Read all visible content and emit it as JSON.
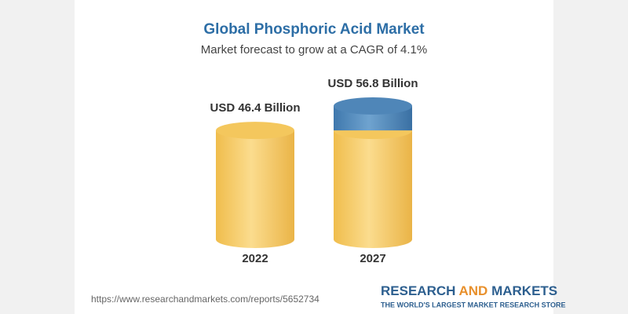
{
  "chart_data": {
    "type": "bar",
    "title": "Global Phosphoric Acid Market",
    "subtitle": "Market forecast to grow at a CAGR of 4.1%",
    "categories": [
      "2022",
      "2027"
    ],
    "values": [
      46.4,
      56.8
    ],
    "value_labels": [
      "USD 46.4 Billion",
      "USD 56.8 Billion"
    ],
    "color": "#f4c75d",
    "highlight_color": "#4f86b8"
  },
  "source": "https://www.researchandmarkets.com/reports/5652734",
  "brand": {
    "name": [
      "RESEARCH",
      "AND",
      "MARKETS"
    ],
    "tagline": "THE WORLD'S LARGEST MARKET RESEARCH STORE"
  }
}
